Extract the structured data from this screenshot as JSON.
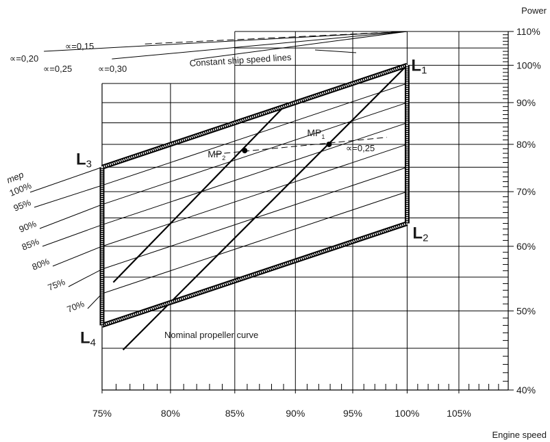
{
  "chart_data": {
    "type": "line",
    "title": "",
    "xlabel": "Engine speed",
    "ylabel": "Power",
    "x_scale": "log",
    "y_scale": "log",
    "xlim": [
      75,
      110
    ],
    "ylim": [
      40,
      110
    ],
    "x_ticks": [
      75,
      80,
      85,
      90,
      95,
      100,
      105
    ],
    "x_tick_labels": [
      "75%",
      "80%",
      "85%",
      "90%",
      "95%",
      "100%",
      "105%"
    ],
    "y_ticks": [
      40,
      50,
      60,
      70,
      80,
      90,
      100,
      110
    ],
    "y_tick_labels": [
      "40%",
      "50%",
      "60%",
      "70%",
      "80%",
      "90%",
      "100%",
      "110%"
    ],
    "grid": true,
    "layout_diagram": {
      "corners": [
        {
          "id": "L1",
          "label": "L",
          "sub": "1",
          "x": 100,
          "y": 100
        },
        {
          "id": "L2",
          "label": "L",
          "sub": "2",
          "x": 100,
          "y": 64
        },
        {
          "id": "L3",
          "label": "L",
          "sub": "3",
          "x": 75,
          "y": 75
        },
        {
          "id": "L4",
          "label": "L",
          "sub": "4",
          "x": 75,
          "y": 48
        }
      ]
    },
    "mep_title": "mep",
    "mep_lines": [
      {
        "label": "100%",
        "at_75": 75.0,
        "at_100": 100.0
      },
      {
        "label": "95%",
        "at_75": 71.25,
        "at_100": 95.0
      },
      {
        "label": "90%",
        "at_75": 67.5,
        "at_100": 90.0
      },
      {
        "label": "85%",
        "at_75": 63.75,
        "at_100": 85.0
      },
      {
        "label": "80%",
        "at_75": 60.0,
        "at_100": 80.0
      },
      {
        "label": "75%",
        "at_75": 56.25,
        "at_100": 75.0
      },
      {
        "label": "70%",
        "at_75": 52.5,
        "at_100": 70.0
      }
    ],
    "propeller_lines": [
      {
        "name": "Nominal propeller curve",
        "points": [
          [
            76.5,
            44.8
          ],
          [
            100,
            100
          ]
        ]
      },
      {
        "name": "",
        "points": [
          [
            75.8,
            54.2
          ],
          [
            89.2,
            89.5
          ]
        ]
      }
    ],
    "ship_speed_lines": {
      "label": "Constant ship speed lines",
      "end": [
        100,
        110
      ],
      "lines": [
        {
          "alpha": "∝=0,15",
          "start": [
            78.1,
            106.2
          ]
        },
        {
          "alpha": "∝=0,20",
          "start": [
            71.0,
            104.0
          ]
        },
        {
          "alpha": "∝=0,25",
          "start": [
            75.7,
            101.8
          ]
        },
        {
          "alpha": "∝=0,30",
          "start": [
            81.8,
            101.6
          ]
        }
      ]
    },
    "mp_points": [
      {
        "label": "MP",
        "sub": "1",
        "x": 92.9,
        "y": 80.0
      },
      {
        "label": "MP",
        "sub": "2",
        "x": 85.8,
        "y": 78.6
      }
    ],
    "mp_alpha_label": "∝=0,25",
    "mp_alpha_line": [
      [
        83.4,
        77.8
      ],
      [
        98.1,
        81.6
      ]
    ]
  }
}
